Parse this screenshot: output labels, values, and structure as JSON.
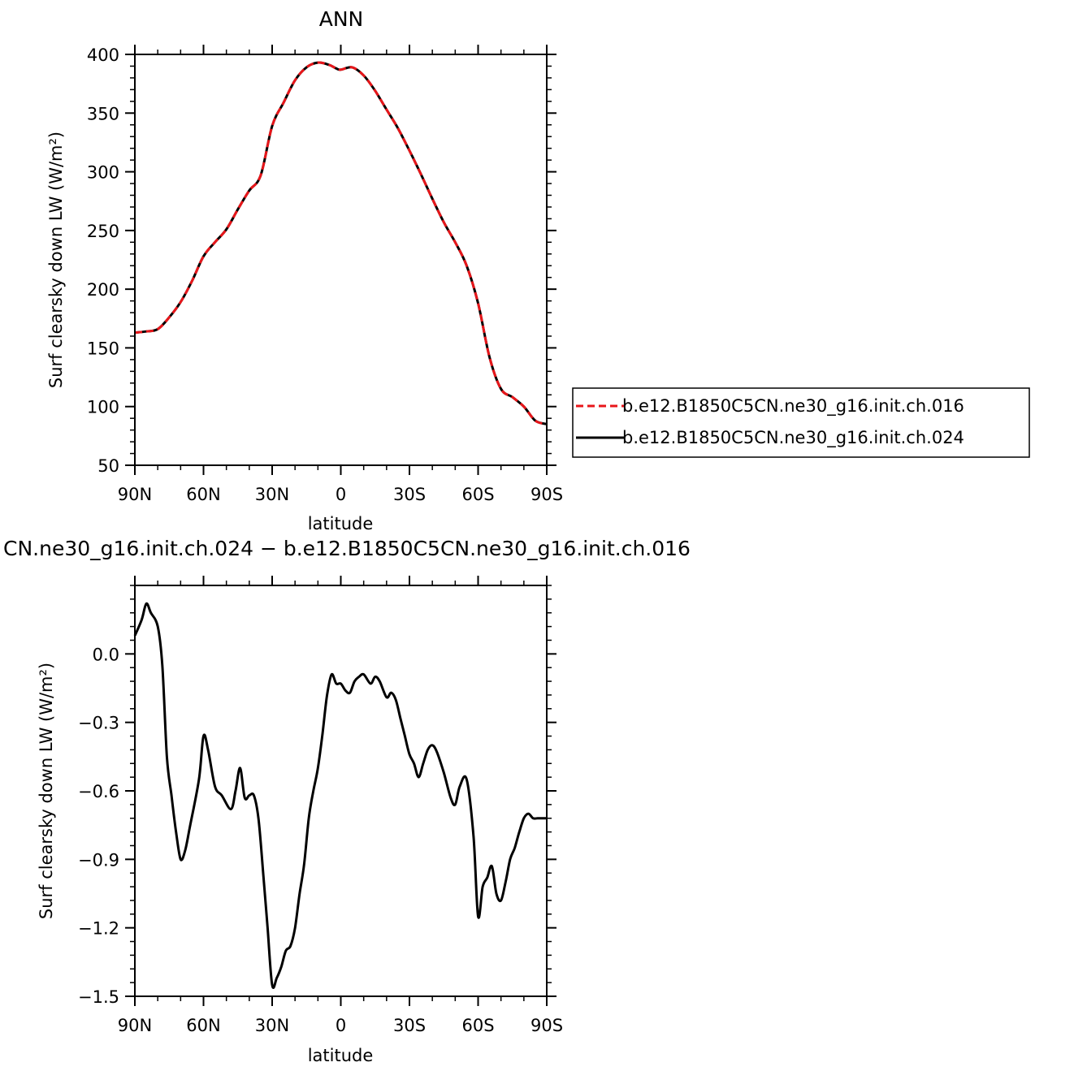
{
  "chart_data": [
    {
      "type": "line",
      "title": "ANN",
      "xlabel": "latitude",
      "ylabel": "Surf clearsky down LW (W/m²)",
      "xlim": [
        90,
        -90
      ],
      "ylim": [
        50,
        400
      ],
      "xticks": [
        {
          "value": 90,
          "label": "90N"
        },
        {
          "value": 60,
          "label": "60N"
        },
        {
          "value": 30,
          "label": "30N"
        },
        {
          "value": 0,
          "label": "0"
        },
        {
          "value": -30,
          "label": "30S"
        },
        {
          "value": -60,
          "label": "60S"
        },
        {
          "value": -90,
          "label": "90S"
        }
      ],
      "yticks": [
        {
          "value": 400,
          "label": "400"
        },
        {
          "value": 350,
          "label": "350"
        },
        {
          "value": 300,
          "label": "300"
        },
        {
          "value": 250,
          "label": "250"
        },
        {
          "value": 200,
          "label": "200"
        },
        {
          "value": 150,
          "label": "150"
        },
        {
          "value": 100,
          "label": "100"
        },
        {
          "value": 50,
          "label": "50"
        }
      ],
      "legend_position": "right",
      "series": [
        {
          "name": "b.e12.B1850C5CN.ne30_g16.init.ch.016",
          "color": "#e8161a",
          "dash": "dashed",
          "x": [
            90,
            85,
            80,
            75,
            70,
            65,
            60,
            55,
            50,
            45,
            40,
            35,
            30,
            25,
            20,
            15,
            10,
            5,
            2,
            0,
            -5,
            -10,
            -15,
            -20,
            -25,
            -30,
            -35,
            -40,
            -45,
            -50,
            -55,
            -60,
            -65,
            -70,
            -75,
            -80,
            -85,
            -90
          ],
          "y": [
            163,
            164,
            166,
            176,
            189,
            207,
            228,
            240,
            251,
            268,
            284,
            297,
            339,
            359,
            378,
            389,
            393,
            391,
            388,
            387,
            389,
            382,
            369,
            353,
            337,
            318,
            298,
            277,
            257,
            240,
            220,
            188,
            142,
            115,
            108,
            100,
            88,
            85
          ]
        },
        {
          "name": "b.e12.B1850C5CN.ne30_g16.init.ch.024",
          "color": "#000000",
          "dash": "solid",
          "x": [
            90,
            85,
            80,
            75,
            70,
            65,
            60,
            55,
            50,
            45,
            40,
            35,
            30,
            25,
            20,
            15,
            10,
            5,
            2,
            0,
            -5,
            -10,
            -15,
            -20,
            -25,
            -30,
            -35,
            -40,
            -45,
            -50,
            -55,
            -60,
            -65,
            -70,
            -75,
            -80,
            -85,
            -90
          ],
          "y": [
            163,
            164,
            166,
            176,
            189,
            207,
            228,
            240,
            251,
            268,
            284,
            297,
            339,
            359,
            378,
            389,
            393,
            391,
            388,
            387,
            389,
            382,
            369,
            353,
            337,
            318,
            298,
            277,
            257,
            240,
            220,
            188,
            142,
            115,
            108,
            100,
            88,
            85
          ]
        }
      ]
    },
    {
      "type": "line",
      "title": "CN.ne30_g16.init.ch.024 − b.e12.B1850C5CN.ne30_g16.init.ch.016",
      "xlabel": "latitude",
      "ylabel": "Surf clearsky down LW (W/m²)",
      "xlim": [
        90,
        -90
      ],
      "ylim": [
        -1.5,
        0.3
      ],
      "xticks": [
        {
          "value": 90,
          "label": "90N"
        },
        {
          "value": 60,
          "label": "60N"
        },
        {
          "value": 30,
          "label": "30N"
        },
        {
          "value": 0,
          "label": "0"
        },
        {
          "value": -30,
          "label": "30S"
        },
        {
          "value": -60,
          "label": "60S"
        },
        {
          "value": -90,
          "label": "90S"
        }
      ],
      "yticks": [
        {
          "value": 0.0,
          "label": "0.0"
        },
        {
          "value": -0.3,
          "label": "−0.3"
        },
        {
          "value": -0.6,
          "label": "−0.6"
        },
        {
          "value": -0.9,
          "label": "−0.9"
        },
        {
          "value": -1.2,
          "label": "−1.2"
        },
        {
          "value": -1.5,
          "label": "−1.5"
        }
      ],
      "series": [
        {
          "color": "#000000",
          "dash": "solid",
          "x": [
            90,
            87,
            85,
            83,
            80,
            78,
            76,
            74,
            72,
            70,
            68,
            66,
            62,
            60,
            58,
            55,
            52,
            48,
            46,
            44,
            42,
            40,
            38,
            36,
            34,
            32,
            30,
            28,
            26,
            24,
            22,
            20,
            18,
            16,
            14,
            12,
            10,
            8,
            6,
            4,
            2,
            0,
            -2,
            -4,
            -6,
            -8,
            -10,
            -13,
            -15,
            -17,
            -20,
            -22,
            -24,
            -26,
            -28,
            -30,
            -32,
            -34,
            -36,
            -38,
            -40,
            -42,
            -45,
            -48,
            -50,
            -52,
            -55,
            -58,
            -60,
            -62,
            -64,
            -66,
            -68,
            -70,
            -72,
            -74,
            -76,
            -78,
            -80,
            -82,
            -84,
            -86,
            -88,
            -90
          ],
          "y": [
            0.08,
            0.15,
            0.22,
            0.18,
            0.12,
            -0.05,
            -0.45,
            -0.62,
            -0.78,
            -0.9,
            -0.86,
            -0.76,
            -0.55,
            -0.36,
            -0.42,
            -0.58,
            -0.62,
            -0.68,
            -0.6,
            -0.5,
            -0.63,
            -0.62,
            -0.62,
            -0.72,
            -0.95,
            -1.2,
            -1.45,
            -1.42,
            -1.37,
            -1.3,
            -1.28,
            -1.2,
            -1.05,
            -0.92,
            -0.72,
            -0.6,
            -0.5,
            -0.35,
            -0.18,
            -0.09,
            -0.13,
            -0.13,
            -0.16,
            -0.17,
            -0.12,
            -0.1,
            -0.09,
            -0.13,
            -0.1,
            -0.12,
            -0.19,
            -0.17,
            -0.2,
            -0.28,
            -0.36,
            -0.44,
            -0.48,
            -0.54,
            -0.48,
            -0.42,
            -0.4,
            -0.43,
            -0.52,
            -0.63,
            -0.66,
            -0.58,
            -0.55,
            -0.8,
            -1.15,
            -1.02,
            -0.98,
            -0.93,
            -1.05,
            -1.08,
            -1.0,
            -0.9,
            -0.85,
            -0.78,
            -0.72,
            -0.7,
            -0.72,
            -0.72,
            -0.72,
            -0.72
          ]
        }
      ]
    }
  ]
}
